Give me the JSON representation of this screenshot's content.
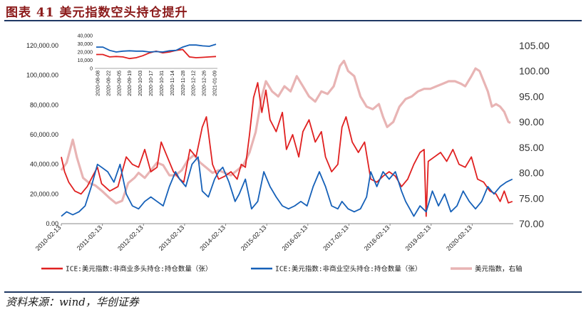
{
  "header": {
    "title": "图表 41    美元指数空头持仓提升"
  },
  "footer": {
    "source": "资料来源：wind，华创证券"
  },
  "chart_data": [
    {
      "type": "line",
      "x_ticks": [
        "2010-02-13",
        "2011-02-13",
        "2012-02-13",
        "2013-02-13",
        "2014-02-13",
        "2015-02-13",
        "2016-02-13",
        "2017-02-13",
        "2018-02-13",
        "2019-02-13",
        "2020-02-13"
      ],
      "y_left_ticks": [
        "0.00",
        "20,000.00",
        "40,000.00",
        "60,000.00",
        "80,000.00",
        "100,000.00",
        "120,000.00"
      ],
      "y_left_range": [
        0,
        120000
      ],
      "y_right_ticks": [
        "70.00",
        "75.00",
        "80.00",
        "85.00",
        "90.00",
        "95.00",
        "100.00",
        "105.00"
      ],
      "y_right_range": [
        70,
        105
      ],
      "legend_position": "bottom",
      "series": [
        {
          "name": "ICE:美元指数:非商业多头持仓:持仓数量（张）",
          "axis": "left",
          "color": "#e02020",
          "points": [
            [
              2010.12,
              45000
            ],
            [
              2010.2,
              35000
            ],
            [
              2010.3,
              28000
            ],
            [
              2010.45,
              22000
            ],
            [
              2010.6,
              20000
            ],
            [
              2010.75,
              25000
            ],
            [
              2010.9,
              33000
            ],
            [
              2011.0,
              38000
            ],
            [
              2011.1,
              27000
            ],
            [
              2011.3,
              22000
            ],
            [
              2011.5,
              25000
            ],
            [
              2011.7,
              45000
            ],
            [
              2011.85,
              40000
            ],
            [
              2012.0,
              38000
            ],
            [
              2012.15,
              50000
            ],
            [
              2012.3,
              35000
            ],
            [
              2012.45,
              38000
            ],
            [
              2012.55,
              55000
            ],
            [
              2012.7,
              45000
            ],
            [
              2012.85,
              35000
            ],
            [
              2013.0,
              30000
            ],
            [
              2013.1,
              28000
            ],
            [
              2013.25,
              50000
            ],
            [
              2013.4,
              45000
            ],
            [
              2013.55,
              65000
            ],
            [
              2013.65,
              72000
            ],
            [
              2013.8,
              40000
            ],
            [
              2013.95,
              30000
            ],
            [
              2014.1,
              32000
            ],
            [
              2014.25,
              35000
            ],
            [
              2014.4,
              30000
            ],
            [
              2014.5,
              40000
            ],
            [
              2014.6,
              38000
            ],
            [
              2014.7,
              60000
            ],
            [
              2014.8,
              85000
            ],
            [
              2014.9,
              95000
            ],
            [
              2015.0,
              75000
            ],
            [
              2015.1,
              90000
            ],
            [
              2015.2,
              70000
            ],
            [
              2015.35,
              62000
            ],
            [
              2015.5,
              75000
            ],
            [
              2015.6,
              50000
            ],
            [
              2015.75,
              60000
            ],
            [
              2015.9,
              45000
            ],
            [
              2016.0,
              62000
            ],
            [
              2016.15,
              70000
            ],
            [
              2016.3,
              55000
            ],
            [
              2016.45,
              62000
            ],
            [
              2016.55,
              45000
            ],
            [
              2016.7,
              35000
            ],
            [
              2016.85,
              40000
            ],
            [
              2016.95,
              65000
            ],
            [
              2017.05,
              72000
            ],
            [
              2017.2,
              55000
            ],
            [
              2017.35,
              48000
            ],
            [
              2017.5,
              55000
            ],
            [
              2017.65,
              30000
            ],
            [
              2017.8,
              28000
            ],
            [
              2017.95,
              32000
            ],
            [
              2018.1,
              35000
            ],
            [
              2018.25,
              32000
            ],
            [
              2018.4,
              25000
            ],
            [
              2018.55,
              30000
            ],
            [
              2018.7,
              40000
            ],
            [
              2018.85,
              48000
            ],
            [
              2018.95,
              50000
            ],
            [
              2019.0,
              5000
            ],
            [
              2019.05,
              42000
            ],
            [
              2019.2,
              45000
            ],
            [
              2019.35,
              48000
            ],
            [
              2019.5,
              42000
            ],
            [
              2019.65,
              50000
            ],
            [
              2019.8,
              40000
            ],
            [
              2019.95,
              38000
            ],
            [
              2020.1,
              45000
            ],
            [
              2020.25,
              30000
            ],
            [
              2020.4,
              28000
            ],
            [
              2020.55,
              22000
            ],
            [
              2020.7,
              20000
            ],
            [
              2020.8,
              15000
            ],
            [
              2020.9,
              22000
            ],
            [
              2021.0,
              14000
            ],
            [
              2021.1,
              15000
            ]
          ]
        },
        {
          "name": "ICE:美元指数:非商业空头持仓:持仓数量（张）",
          "axis": "left",
          "color": "#1560b8",
          "points": [
            [
              2010.12,
              5000
            ],
            [
              2010.25,
              8000
            ],
            [
              2010.4,
              6000
            ],
            [
              2010.55,
              8000
            ],
            [
              2010.7,
              12000
            ],
            [
              2010.85,
              25000
            ],
            [
              2011.0,
              40000
            ],
            [
              2011.1,
              38000
            ],
            [
              2011.25,
              35000
            ],
            [
              2011.4,
              28000
            ],
            [
              2011.55,
              40000
            ],
            [
              2011.7,
              20000
            ],
            [
              2011.85,
              12000
            ],
            [
              2012.0,
              10000
            ],
            [
              2012.15,
              15000
            ],
            [
              2012.3,
              18000
            ],
            [
              2012.45,
              15000
            ],
            [
              2012.6,
              12000
            ],
            [
              2012.75,
              25000
            ],
            [
              2012.9,
              35000
            ],
            [
              2013.0,
              30000
            ],
            [
              2013.15,
              25000
            ],
            [
              2013.3,
              40000
            ],
            [
              2013.45,
              45000
            ],
            [
              2013.55,
              22000
            ],
            [
              2013.7,
              18000
            ],
            [
              2013.85,
              30000
            ],
            [
              2013.95,
              35000
            ],
            [
              2014.05,
              38000
            ],
            [
              2014.2,
              28000
            ],
            [
              2014.35,
              15000
            ],
            [
              2014.45,
              20000
            ],
            [
              2014.6,
              30000
            ],
            [
              2014.75,
              10000
            ],
            [
              2014.9,
              15000
            ],
            [
              2015.05,
              35000
            ],
            [
              2015.2,
              25000
            ],
            [
              2015.35,
              18000
            ],
            [
              2015.5,
              12000
            ],
            [
              2015.65,
              10000
            ],
            [
              2015.8,
              12000
            ],
            [
              2015.95,
              15000
            ],
            [
              2016.1,
              12000
            ],
            [
              2016.25,
              25000
            ],
            [
              2016.4,
              35000
            ],
            [
              2016.55,
              25000
            ],
            [
              2016.7,
              12000
            ],
            [
              2016.85,
              10000
            ],
            [
              2016.95,
              15000
            ],
            [
              2017.1,
              10000
            ],
            [
              2017.25,
              8000
            ],
            [
              2017.4,
              10000
            ],
            [
              2017.55,
              18000
            ],
            [
              2017.65,
              35000
            ],
            [
              2017.8,
              25000
            ],
            [
              2017.95,
              35000
            ],
            [
              2018.1,
              30000
            ],
            [
              2018.25,
              35000
            ],
            [
              2018.4,
              22000
            ],
            [
              2018.5,
              15000
            ],
            [
              2018.6,
              10000
            ],
            [
              2018.7,
              5000
            ],
            [
              2018.85,
              12000
            ],
            [
              2019.0,
              8000
            ],
            [
              2019.15,
              22000
            ],
            [
              2019.3,
              12000
            ],
            [
              2019.45,
              20000
            ],
            [
              2019.6,
              8000
            ],
            [
              2019.75,
              12000
            ],
            [
              2019.9,
              22000
            ],
            [
              2020.05,
              15000
            ],
            [
              2020.2,
              10000
            ],
            [
              2020.35,
              15000
            ],
            [
              2020.5,
              25000
            ],
            [
              2020.65,
              20000
            ],
            [
              2020.8,
              25000
            ],
            [
              2020.95,
              28000
            ],
            [
              2021.1,
              30000
            ]
          ]
        },
        {
          "name": "美元指数，右轴",
          "axis": "right",
          "color": "#e8b4b4",
          "points": [
            [
              2010.12,
              80.5
            ],
            [
              2010.25,
              82
            ],
            [
              2010.4,
              86.5
            ],
            [
              2010.5,
              83
            ],
            [
              2010.65,
              79
            ],
            [
              2010.8,
              78
            ],
            [
              2010.95,
              77.5
            ],
            [
              2011.1,
              76.5
            ],
            [
              2011.3,
              75
            ],
            [
              2011.45,
              74
            ],
            [
              2011.6,
              74.5
            ],
            [
              2011.75,
              78
            ],
            [
              2011.9,
              79
            ],
            [
              2012.0,
              80
            ],
            [
              2012.15,
              79
            ],
            [
              2012.3,
              80.5
            ],
            [
              2012.45,
              82
            ],
            [
              2012.6,
              81.5
            ],
            [
              2012.75,
              79.5
            ],
            [
              2012.9,
              79.5
            ],
            [
              2013.05,
              80.5
            ],
            [
              2013.2,
              82.5
            ],
            [
              2013.35,
              83.5
            ],
            [
              2013.5,
              82
            ],
            [
              2013.65,
              81
            ],
            [
              2013.8,
              80
            ],
            [
              2013.95,
              80.5
            ],
            [
              2014.1,
              80
            ],
            [
              2014.25,
              79.5
            ],
            [
              2014.4,
              80.5
            ],
            [
              2014.55,
              81.5
            ],
            [
              2014.7,
              84
            ],
            [
              2014.85,
              88
            ],
            [
              2015.0,
              95
            ],
            [
              2015.1,
              98
            ],
            [
              2015.25,
              96
            ],
            [
              2015.4,
              95
            ],
            [
              2015.55,
              97
            ],
            [
              2015.7,
              96
            ],
            [
              2015.85,
              99
            ],
            [
              2016.0,
              97
            ],
            [
              2016.15,
              95
            ],
            [
              2016.3,
              94
            ],
            [
              2016.45,
              96
            ],
            [
              2016.6,
              95.5
            ],
            [
              2016.75,
              97
            ],
            [
              2016.9,
              101
            ],
            [
              2017.0,
              102
            ],
            [
              2017.1,
              100
            ],
            [
              2017.25,
              99
            ],
            [
              2017.4,
              95
            ],
            [
              2017.55,
              93
            ],
            [
              2017.7,
              92.5
            ],
            [
              2017.85,
              93.5
            ],
            [
              2017.95,
              91
            ],
            [
              2018.05,
              89
            ],
            [
              2018.2,
              90
            ],
            [
              2018.35,
              93
            ],
            [
              2018.5,
              94.5
            ],
            [
              2018.65,
              95
            ],
            [
              2018.8,
              96
            ],
            [
              2018.95,
              96.5
            ],
            [
              2019.1,
              96.5
            ],
            [
              2019.25,
              97
            ],
            [
              2019.4,
              97.5
            ],
            [
              2019.55,
              98
            ],
            [
              2019.7,
              98
            ],
            [
              2019.85,
              97.5
            ],
            [
              2019.95,
              97
            ],
            [
              2020.1,
              99
            ],
            [
              2020.2,
              100.5
            ],
            [
              2020.3,
              100
            ],
            [
              2020.4,
              98
            ],
            [
              2020.5,
              96
            ],
            [
              2020.6,
              93
            ],
            [
              2020.7,
              93.5
            ],
            [
              2020.8,
              93
            ],
            [
              2020.9,
              92
            ],
            [
              2021.0,
              90
            ],
            [
              2021.05,
              89.8
            ]
          ]
        }
      ]
    },
    {
      "type": "line",
      "x_ticks": [
        "2020-08-08",
        "2020-08-22",
        "2020-09-05",
        "2020-09-19",
        "2020-10-03",
        "2020-10-17",
        "2020-10-31",
        "2020-11-14",
        "2020-11-28",
        "2020-12-12",
        "2020-12-26",
        "2021-01-09"
      ],
      "y_ticks": [
        "0",
        "10,000",
        "20,000",
        "30,000",
        "40,000"
      ],
      "y_range": [
        0,
        40000
      ],
      "series": [
        {
          "axis": "left",
          "color": "#e02020",
          "values": [
            17000,
            17000,
            14000,
            14500,
            14000,
            12000,
            13000,
            15500,
            19000,
            21000,
            19000,
            20000,
            22000,
            23000,
            14000,
            13000,
            13500,
            14000,
            14500
          ]
        },
        {
          "axis": "left",
          "color": "#1560b8",
          "values": [
            26000,
            26000,
            22000,
            20000,
            21000,
            21500,
            21000,
            21000,
            20000,
            20500,
            20000,
            21500,
            22000,
            26000,
            28500,
            28500,
            27500,
            27000,
            29500
          ]
        }
      ]
    }
  ]
}
